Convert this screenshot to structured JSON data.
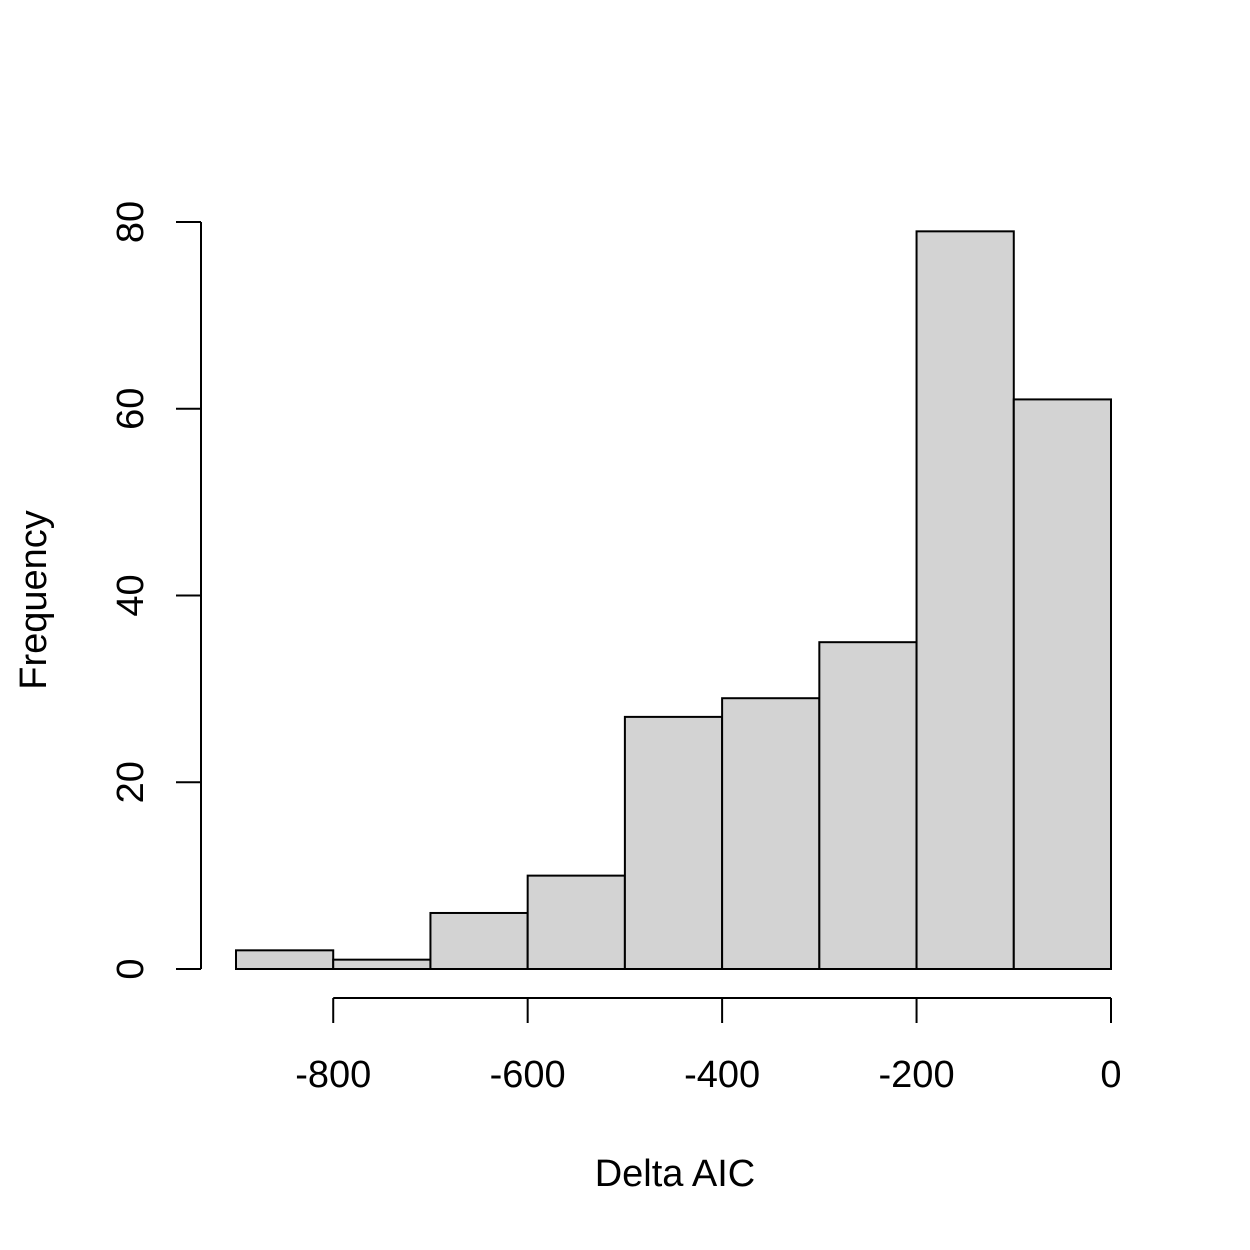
{
  "chart_data": {
    "type": "bar",
    "title": "",
    "xlabel": "Delta AIC",
    "ylabel": "Frequency",
    "bins": [
      {
        "from": -900,
        "to": -800,
        "count": 2
      },
      {
        "from": -800,
        "to": -700,
        "count": 1
      },
      {
        "from": -700,
        "to": -600,
        "count": 6
      },
      {
        "from": -600,
        "to": -500,
        "count": 10
      },
      {
        "from": -500,
        "to": -400,
        "count": 27
      },
      {
        "from": -400,
        "to": -300,
        "count": 29
      },
      {
        "from": -300,
        "to": -200,
        "count": 35
      },
      {
        "from": -200,
        "to": -100,
        "count": 79
      },
      {
        "from": -100,
        "to": 0,
        "count": 61
      }
    ],
    "x_ticks": [
      -800,
      -600,
      -400,
      -200,
      0
    ],
    "x_tick_labels": [
      "-800",
      "-600",
      "-400",
      "-200",
      "0"
    ],
    "y_ticks": [
      0,
      20,
      40,
      60,
      80
    ],
    "y_tick_labels": [
      "0",
      "20",
      "40",
      "60",
      "80"
    ],
    "xlim": [
      -900,
      0
    ],
    "ylim": [
      0,
      80
    ],
    "grid": false,
    "legend": "none",
    "bar_color": "#d3d3d3",
    "edge_color": "#000000"
  }
}
